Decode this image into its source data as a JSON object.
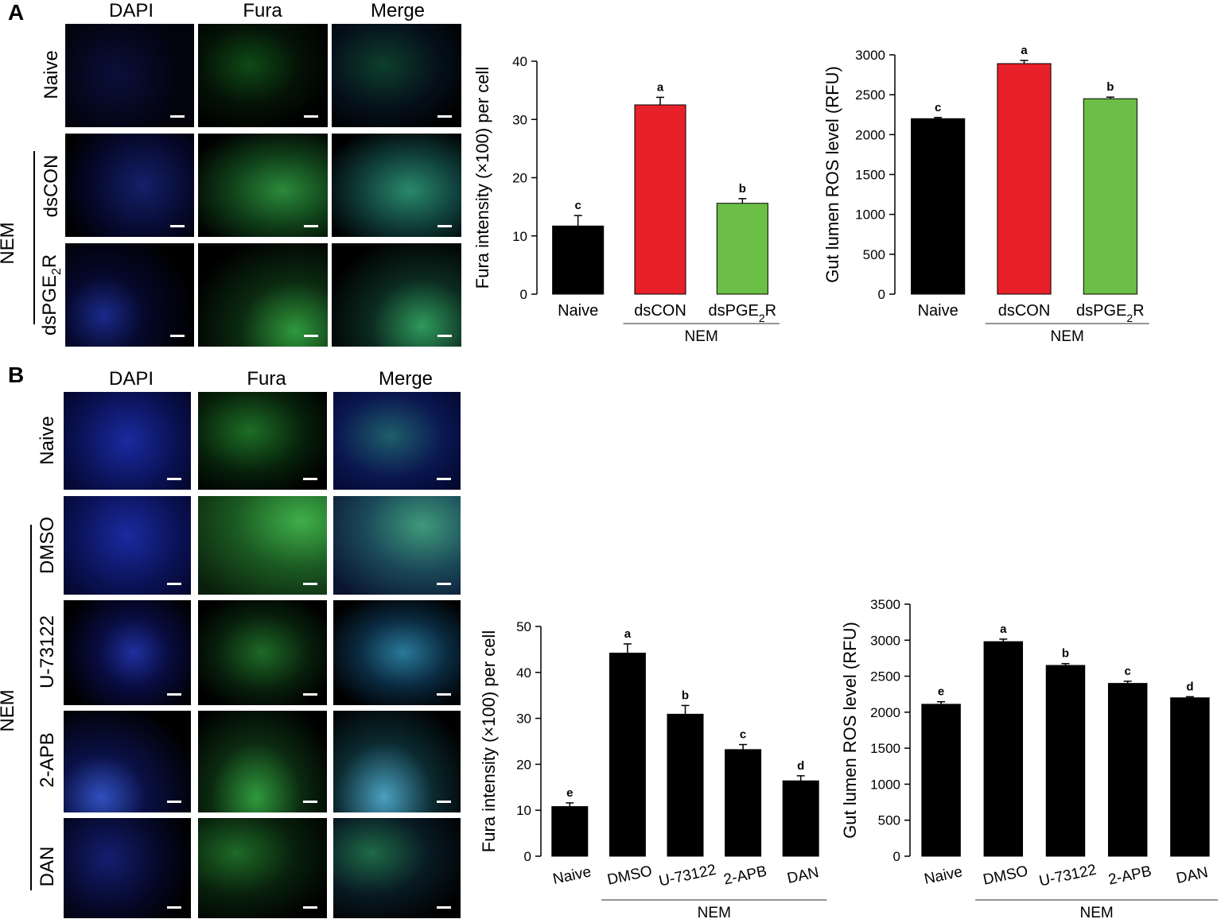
{
  "panels": {
    "A": {
      "letter": "A",
      "columns": [
        "DAPI",
        "Fura",
        "Merge"
      ],
      "rows": [
        "Naive",
        "dsCON",
        "dsPGE2R"
      ],
      "group_label": "NEM"
    },
    "B": {
      "letter": "B",
      "columns": [
        "DAPI",
        "Fura",
        "Merge"
      ],
      "rows": [
        "Naive",
        "DMSO",
        "U-73122",
        "2-APB",
        "DAN"
      ],
      "group_label": "NEM"
    }
  },
  "chart_data": [
    {
      "id": "A-fura",
      "type": "bar",
      "categories": [
        "Naive",
        "dsCON",
        "dsPGE2R"
      ],
      "values": [
        11.7,
        32.5,
        15.6
      ],
      "errors": [
        1.8,
        1.3,
        0.8
      ],
      "letters": [
        "c",
        "a",
        "b"
      ],
      "colors": [
        "#000000",
        "#e8202a",
        "#6cbf46"
      ],
      "ylabel": "Fura intensity (×100) per cell",
      "ylim": [
        0,
        40
      ],
      "yticks": [
        0,
        10,
        20,
        30,
        40
      ],
      "group_label": "NEM",
      "group_span": [
        1,
        2
      ]
    },
    {
      "id": "A-ros",
      "type": "bar",
      "categories": [
        "Naive",
        "dsCON",
        "dsPGE2R"
      ],
      "values": [
        2200,
        2890,
        2450
      ],
      "errors": [
        15,
        40,
        20
      ],
      "letters": [
        "c",
        "a",
        "b"
      ],
      "colors": [
        "#000000",
        "#e8202a",
        "#6cbf46"
      ],
      "ylabel": "Gut lumen ROS level (RFU)",
      "ylim": [
        0,
        3000
      ],
      "yticks": [
        0,
        500,
        1000,
        1500,
        2000,
        2500,
        3000
      ],
      "group_label": "NEM",
      "group_span": [
        1,
        2
      ]
    },
    {
      "id": "B-fura",
      "type": "bar",
      "categories": [
        "Naive",
        "DMSO",
        "U-73122",
        "2-APB",
        "DAN"
      ],
      "values": [
        10.8,
        44.2,
        30.9,
        23.2,
        16.4
      ],
      "errors": [
        0.8,
        2.0,
        1.9,
        1.1,
        1.1
      ],
      "letters": [
        "e",
        "a",
        "b",
        "c",
        "d"
      ],
      "colors": [
        "#000000",
        "#000000",
        "#000000",
        "#000000",
        "#000000"
      ],
      "ylabel": "Fura intensity (×100) per cell",
      "ylim": [
        0,
        50
      ],
      "yticks": [
        0,
        10,
        20,
        30,
        40,
        50
      ],
      "group_label": "NEM",
      "group_span": [
        1,
        4
      ]
    },
    {
      "id": "B-ros",
      "type": "bar",
      "categories": [
        "Naive",
        "DMSO",
        "U-73122",
        "2-APB",
        "DAN"
      ],
      "values": [
        2110,
        2980,
        2650,
        2400,
        2200
      ],
      "errors": [
        35,
        35,
        25,
        30,
        15
      ],
      "letters": [
        "e",
        "a",
        "b",
        "c",
        "d"
      ],
      "colors": [
        "#000000",
        "#000000",
        "#000000",
        "#000000",
        "#000000"
      ],
      "ylabel": "Gut lumen ROS level (RFU)",
      "ylim": [
        0,
        3500
      ],
      "yticks": [
        0,
        500,
        1000,
        1500,
        2000,
        2500,
        3000,
        3500
      ],
      "group_label": "NEM",
      "group_span": [
        1,
        4
      ]
    }
  ]
}
